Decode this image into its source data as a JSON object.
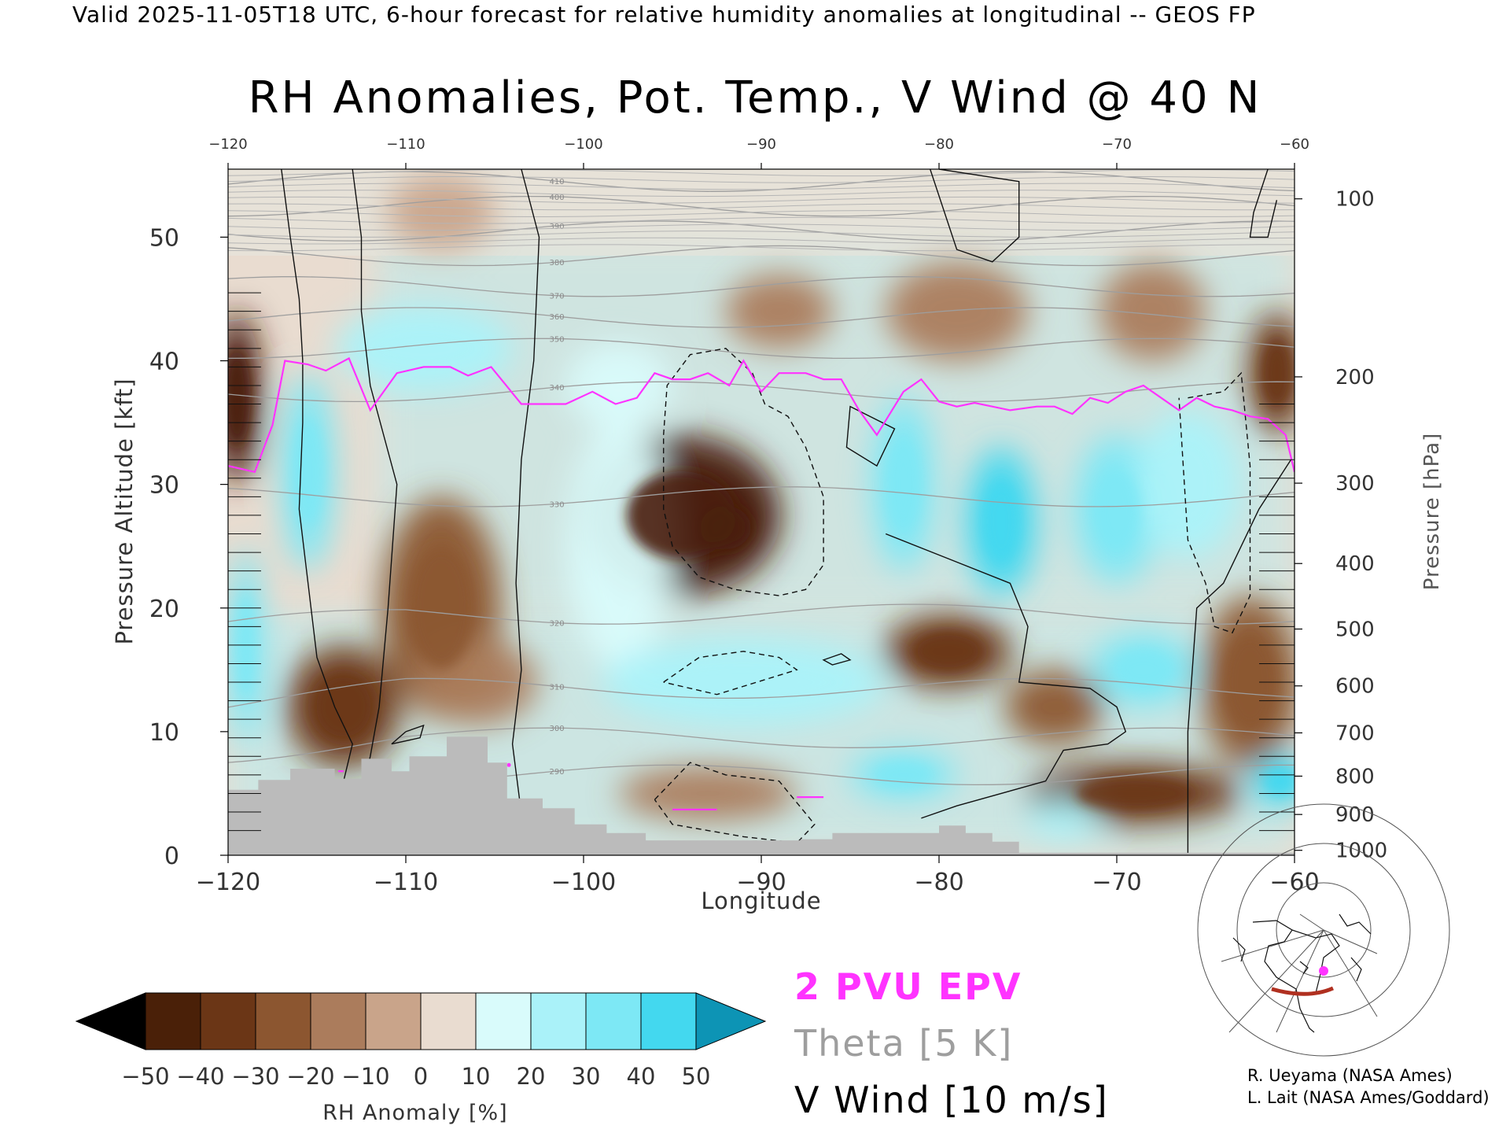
{
  "header": "Valid 2025-11-05T18 UTC, 6-hour forecast for relative humidity anomalies at longitudinal -- GEOS FP",
  "chart_data": {
    "type": "heatmap",
    "title": "RH Anomalies, Pot. Temp., V Wind @ 40 N",
    "xlabel": "Longitude",
    "ylabel": "Pressure Altitude [kft]",
    "y2label": "Pressure [hPa]",
    "xlim": [
      -120,
      -60
    ],
    "ylim": [
      0,
      55.5
    ],
    "x_ticks": [
      -120,
      -110,
      -100,
      -90,
      -80,
      -70,
      -60
    ],
    "x_tick_labels": [
      "−120",
      "−110",
      "−100",
      "−90",
      "−80",
      "−70",
      "−60"
    ],
    "y_ticks": [
      0,
      10,
      20,
      30,
      40,
      50
    ],
    "y2_ticks": [
      {
        "label": "1000",
        "alt": 0.4
      },
      {
        "label": "900",
        "alt": 3.3
      },
      {
        "label": "800",
        "alt": 6.4
      },
      {
        "label": "700",
        "alt": 9.9
      },
      {
        "label": "600",
        "alt": 13.7
      },
      {
        "label": "500",
        "alt": 18.3
      },
      {
        "label": "400",
        "alt": 23.6
      },
      {
        "label": "300",
        "alt": 30.1
      },
      {
        "label": "200",
        "alt": 38.7
      },
      {
        "label": "100",
        "alt": 53.1
      }
    ],
    "grid": false,
    "anomaly_blobs": [
      {
        "x": -94.5,
        "y": 27.5,
        "rx": 5.6,
        "ry": 6.5,
        "value": -45
      },
      {
        "x": -92,
        "y": 26.5,
        "rx": 2.6,
        "ry": 3.2,
        "value": -50
      },
      {
        "x": -108,
        "y": 20,
        "rx": 3.4,
        "ry": 9,
        "value": -30
      },
      {
        "x": -113.5,
        "y": 12,
        "rx": 3.2,
        "ry": 5,
        "value": -32
      },
      {
        "x": -106,
        "y": 14,
        "rx": 3.4,
        "ry": 3.5,
        "value": -18
      },
      {
        "x": -119.5,
        "y": 37,
        "rx": 1.4,
        "ry": 7,
        "value": -45
      },
      {
        "x": -61,
        "y": 39,
        "rx": 1.6,
        "ry": 5,
        "value": -40
      },
      {
        "x": -79.5,
        "y": 16.5,
        "rx": 3.6,
        "ry": 3,
        "value": -35
      },
      {
        "x": -73.5,
        "y": 12,
        "rx": 2.8,
        "ry": 3,
        "value": -28
      },
      {
        "x": -69,
        "y": 5,
        "rx": 6,
        "ry": 2.5,
        "value": -38
      },
      {
        "x": -93,
        "y": 5,
        "rx": 5,
        "ry": 2.2,
        "value": -20
      },
      {
        "x": -62.5,
        "y": 14,
        "rx": 2.8,
        "ry": 7,
        "value": -30
      },
      {
        "x": -89,
        "y": 44,
        "rx": 3,
        "ry": 3,
        "value": -12
      },
      {
        "x": -79,
        "y": 44,
        "rx": 4,
        "ry": 4,
        "value": -14
      },
      {
        "x": -68,
        "y": 44,
        "rx": 3,
        "ry": 4,
        "value": -12
      },
      {
        "x": -108,
        "y": 52,
        "rx": 3,
        "ry": 3,
        "value": -8
      },
      {
        "x": -115.5,
        "y": 31,
        "rx": 1.6,
        "ry": 8,
        "value": 32
      },
      {
        "x": -109,
        "y": 41,
        "rx": 5,
        "ry": 3.5,
        "value": 22
      },
      {
        "x": -98,
        "y": 25,
        "rx": 3,
        "ry": 10,
        "value": 15
      },
      {
        "x": -82,
        "y": 30,
        "rx": 1.8,
        "ry": 7,
        "value": 35
      },
      {
        "x": -76.5,
        "y": 27,
        "rx": 2,
        "ry": 6,
        "value": 40
      },
      {
        "x": -70,
        "y": 28,
        "rx": 2.4,
        "ry": 6,
        "value": 35
      },
      {
        "x": -66,
        "y": 30,
        "rx": 3,
        "ry": 6,
        "value": 22
      },
      {
        "x": -91,
        "y": 14,
        "rx": 8,
        "ry": 3.5,
        "value": 28
      },
      {
        "x": -82,
        "y": 6.5,
        "rx": 3,
        "ry": 2,
        "value": 35
      },
      {
        "x": -68.5,
        "y": 15,
        "rx": 3,
        "ry": 3,
        "value": 32
      },
      {
        "x": -98,
        "y": 38,
        "rx": 3,
        "ry": 3.5,
        "value": 18
      },
      {
        "x": -119,
        "y": 17,
        "rx": 1,
        "ry": 8,
        "value": 30
      },
      {
        "x": -60.8,
        "y": 6,
        "rx": 1.6,
        "ry": 2,
        "value": 40
      },
      {
        "x": -73,
        "y": 3,
        "rx": 2,
        "ry": 1.5,
        "value": 25
      }
    ],
    "tropopause_2pvu": {
      "x": [
        -120,
        -118.5,
        -117.5,
        -116.8,
        -115.5,
        -114.5,
        -113.2,
        -112,
        -110.5,
        -109,
        -107.5,
        -106.5,
        -105.2,
        -103.5,
        -102.5,
        -101,
        -99.5,
        -98.2,
        -97,
        -96,
        -95,
        -94,
        -93,
        -91.8,
        -91,
        -90,
        -89,
        -87.5,
        -86.5,
        -85.5,
        -84.5,
        -83.5,
        -82,
        -81,
        -80,
        -79,
        -78,
        -77,
        -76,
        -74.5,
        -73.5,
        -72.5,
        -71.5,
        -70.5,
        -69.5,
        -68.5,
        -67.5,
        -66.5,
        -65.5,
        -64.5,
        -63.5,
        -62.5,
        -61.5,
        -60.5,
        -60
      ],
      "y": [
        31.5,
        31,
        34.8,
        40,
        39.7,
        39.2,
        40.2,
        36,
        39,
        39.5,
        39.5,
        38.8,
        39.5,
        36.5,
        36.5,
        36.5,
        37.5,
        36.5,
        37,
        39,
        38.5,
        38.5,
        39,
        38,
        40,
        37.5,
        39,
        39,
        38.5,
        38.5,
        36,
        34,
        37.5,
        38.5,
        36.7,
        36.3,
        36.6,
        36.3,
        36,
        36.3,
        36.3,
        35.7,
        37,
        36.6,
        37.5,
        38,
        37,
        36,
        37,
        36.3,
        36,
        35.5,
        35.3,
        34,
        31
      ]
    },
    "tropopause_low_fragments": [
      {
        "x": [
          -113.8,
          -113.5
        ],
        "y": [
          6.8,
          6.8
        ]
      },
      {
        "x": -104.2,
        "y": 7.3
      },
      {
        "x": [
          -95,
          -92.5
        ],
        "y": [
          3.7,
          3.7
        ]
      },
      {
        "x": [
          -88,
          -86.5
        ],
        "y": [
          4.7,
          4.7
        ]
      }
    ],
    "theta_levels_K": [
      290,
      300,
      310,
      320,
      330,
      340,
      350,
      360,
      370,
      380,
      390,
      400,
      410
    ],
    "v_wind_zero_contours": [
      {
        "x": [
          -113,
          -112.5,
          -112.5,
          -112,
          -110.5,
          -111,
          -111.5,
          -112,
          -112.5
        ],
        "y": [
          55.5,
          50,
          44,
          38,
          30,
          20,
          12,
          8,
          5
        ]
      },
      {
        "x": [
          -103.5,
          -102.5,
          -102.8,
          -103.5,
          -103.8,
          -103.5,
          -104,
          -103.2
        ],
        "y": [
          55.5,
          50,
          40,
          32,
          22,
          15,
          9,
          0
        ]
      },
      {
        "x": [
          -80,
          -75.5,
          -75.5,
          -77,
          -79,
          -80.5
        ],
        "y": [
          55.5,
          54.5,
          50,
          48,
          49,
          55.5
        ]
      },
      {
        "x": [
          -83,
          -79.5,
          -76,
          -75,
          -75.5,
          -71.5,
          -70,
          -69.5,
          -70.5,
          -73,
          -74,
          -79,
          -81
        ],
        "y": [
          26,
          24,
          22,
          18.5,
          14,
          13.5,
          12,
          10,
          9,
          8.5,
          6,
          4,
          3
        ]
      },
      {
        "x": [
          -60.2,
          -62,
          -64,
          -65.5,
          -66,
          -66
        ],
        "y": [
          32,
          28,
          22,
          20,
          10,
          0
        ]
      }
    ],
    "v_wind_10_contours": [
      {
        "x": [
          -117,
          -116.5,
          -116,
          -115.8,
          -115.8,
          -116,
          -115.5,
          -115,
          -114,
          -113,
          -113.5
        ],
        "y": [
          55.5,
          50,
          45,
          40,
          35,
          28,
          22,
          16,
          12,
          9,
          6
        ]
      },
      {
        "x": [
          -110,
          -109,
          -109.2,
          -110.8,
          -110
        ],
        "y": [
          10,
          10.5,
          9.5,
          9,
          10
        ]
      },
      {
        "x": [
          -61.5,
          -62.3,
          -62.5,
          -61.5,
          -61
        ],
        "y": [
          55.5,
          52,
          50,
          50,
          53
        ]
      }
    ],
    "v_wind_neg10_contours": [
      {
        "x": [
          -95.5,
          -95.3,
          -94,
          -92,
          -90.5,
          -89.8,
          -88.5,
          -87.5,
          -86.5,
          -86.5,
          -87.5,
          -89,
          -91.5,
          -93.5,
          -95,
          -95.5,
          -95.5
        ],
        "y": [
          34,
          38,
          40.5,
          41,
          39,
          36.5,
          35.5,
          33,
          29,
          23.5,
          21.5,
          21,
          21.5,
          22.5,
          25,
          28,
          34
        ]
      },
      {
        "x": [
          -66,
          -64,
          -63,
          -62.5,
          -62.5,
          -63.5,
          -64.5,
          -65,
          -66,
          -66.5
        ],
        "y": [
          37,
          37.5,
          39,
          31.5,
          21,
          18,
          18.5,
          22,
          25.5,
          37
        ]
      },
      {
        "x": [
          -95.5,
          -93.5,
          -91,
          -89,
          -88,
          -92.5,
          -95.5
        ],
        "y": [
          14,
          16,
          16.5,
          16,
          15,
          13,
          14
        ]
      },
      {
        "x": [
          -96,
          -94,
          -92,
          -89,
          -87,
          -88,
          -91,
          -95,
          -96
        ],
        "y": [
          4.5,
          7.5,
          6.5,
          6,
          2.5,
          1,
          1.5,
          2.5,
          4.5
        ]
      }
    ]
  },
  "theta_tick_labels": [
    "290",
    "300",
    "310",
    "320",
    "330",
    "340",
    "350",
    "360",
    "370",
    "380",
    "390",
    "400",
    "410"
  ],
  "colorbar": {
    "label": "RH Anomaly [%]",
    "ticks": [
      "−50",
      "−40",
      "−30",
      "−20",
      "−10",
      "0",
      "10",
      "20",
      "30",
      "40",
      "50"
    ],
    "colors": [
      "#000000",
      "#4a2008",
      "#6b3616",
      "#8c5630",
      "#ab7c5c",
      "#c9a48a",
      "#e9dcd0",
      "#d9fbfb",
      "#aaf2f9",
      "#7de8f5",
      "#43d8ef",
      "#1fbede",
      "#0d94b5",
      "#10908e"
    ]
  },
  "legend": {
    "epv": "2 PVU EPV",
    "theta": "Theta [5 K]",
    "vwind": "V Wind [10 m/s]"
  },
  "colors": {
    "epv": "#ff33ff",
    "theta": "#9e9e9e",
    "topography": "#bbbbbb",
    "map_cross_section": "#b03020",
    "map_marker": "#ff33ff"
  },
  "inset_map": "polar projection map of North America with 40 N cross-section",
  "credits": [
    "R. Ueyama (NASA Ames)",
    "L. Lait (NASA Ames/Goddard)"
  ]
}
